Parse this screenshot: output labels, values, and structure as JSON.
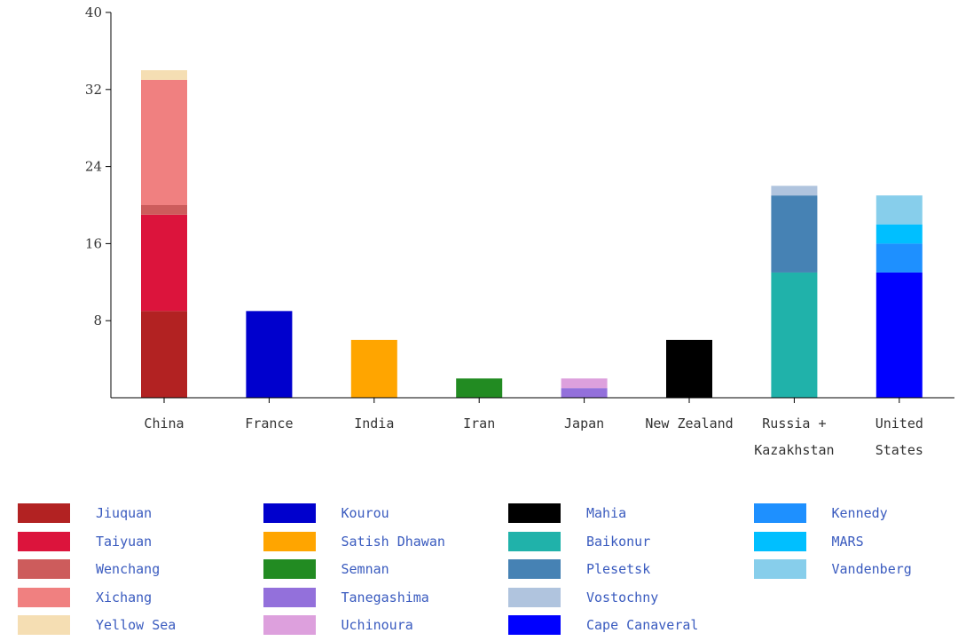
{
  "chart_data": {
    "type": "bar",
    "stacked": true,
    "categories": [
      [
        "China"
      ],
      [
        "France"
      ],
      [
        "India"
      ],
      [
        "Iran"
      ],
      [
        "Japan"
      ],
      [
        "New Zealand"
      ],
      [
        "Russia +",
        "Kazakhstan"
      ],
      [
        "United",
        "States"
      ]
    ],
    "ylim": [
      0,
      40
    ],
    "yticks": [
      8,
      16,
      24,
      32,
      40
    ],
    "stacks": [
      [
        {
          "name": "Jiuquan",
          "value": 9,
          "color": "#b22222"
        },
        {
          "name": "Taiyuan",
          "value": 10,
          "color": "#dc143c"
        },
        {
          "name": "Wenchang",
          "value": 1,
          "color": "#cd5c5c"
        },
        {
          "name": "Xichang",
          "value": 13,
          "color": "#f08080"
        },
        {
          "name": "Yellow Sea",
          "value": 1,
          "color": "#f5deb3"
        }
      ],
      [
        {
          "name": "Kourou",
          "value": 9,
          "color": "#0000cd"
        }
      ],
      [
        {
          "name": "Satish Dhawan",
          "value": 6,
          "color": "#ffa500"
        }
      ],
      [
        {
          "name": "Semnan",
          "value": 2,
          "color": "#228b22"
        }
      ],
      [
        {
          "name": "Tanegashima",
          "value": 1,
          "color": "#9370db"
        },
        {
          "name": "Uchinoura",
          "value": 1,
          "color": "#dda0dd"
        }
      ],
      [
        {
          "name": "Mahia",
          "value": 6,
          "color": "#000000"
        }
      ],
      [
        {
          "name": "Baikonur",
          "value": 13,
          "color": "#20b2aa"
        },
        {
          "name": "Plesetsk",
          "value": 8,
          "color": "#4682b4"
        },
        {
          "name": "Vostochny",
          "value": 1,
          "color": "#b0c4de"
        }
      ],
      [
        {
          "name": "Cape Canaveral",
          "value": 13,
          "color": "#0000ff"
        },
        {
          "name": "Kennedy",
          "value": 3,
          "color": "#1e90ff"
        },
        {
          "name": "MARS",
          "value": 2,
          "color": "#00bfff"
        },
        {
          "name": "Vandenberg",
          "value": 3,
          "color": "#87ceeb"
        }
      ]
    ],
    "legend": {
      "placement": "bottom",
      "columns": [
        [
          {
            "label": "Jiuquan",
            "color": "#b22222"
          },
          {
            "label": "Taiyuan",
            "color": "#dc143c"
          },
          {
            "label": "Wenchang",
            "color": "#cd5c5c"
          },
          {
            "label": "Xichang",
            "color": "#f08080"
          },
          {
            "label": "Yellow Sea",
            "color": "#f5deb3"
          }
        ],
        [
          {
            "label": "Kourou",
            "color": "#0000cd"
          },
          {
            "label": "Satish Dhawan",
            "color": "#ffa500"
          },
          {
            "label": "Semnan",
            "color": "#228b22"
          },
          {
            "label": "Tanegashima",
            "color": "#9370db"
          },
          {
            "label": "Uchinoura",
            "color": "#dda0dd"
          }
        ],
        [
          {
            "label": "Mahia",
            "color": "#000000"
          },
          {
            "label": "Baikonur",
            "color": "#20b2aa"
          },
          {
            "label": "Plesetsk",
            "color": "#4682b4"
          },
          {
            "label": "Vostochny",
            "color": "#b0c4de"
          },
          {
            "label": "Cape Canaveral",
            "color": "#0000ff"
          }
        ],
        [
          {
            "label": "Kennedy",
            "color": "#1e90ff"
          },
          {
            "label": "MARS",
            "color": "#00bfff"
          },
          {
            "label": "Vandenberg",
            "color": "#87ceeb"
          }
        ]
      ]
    }
  }
}
